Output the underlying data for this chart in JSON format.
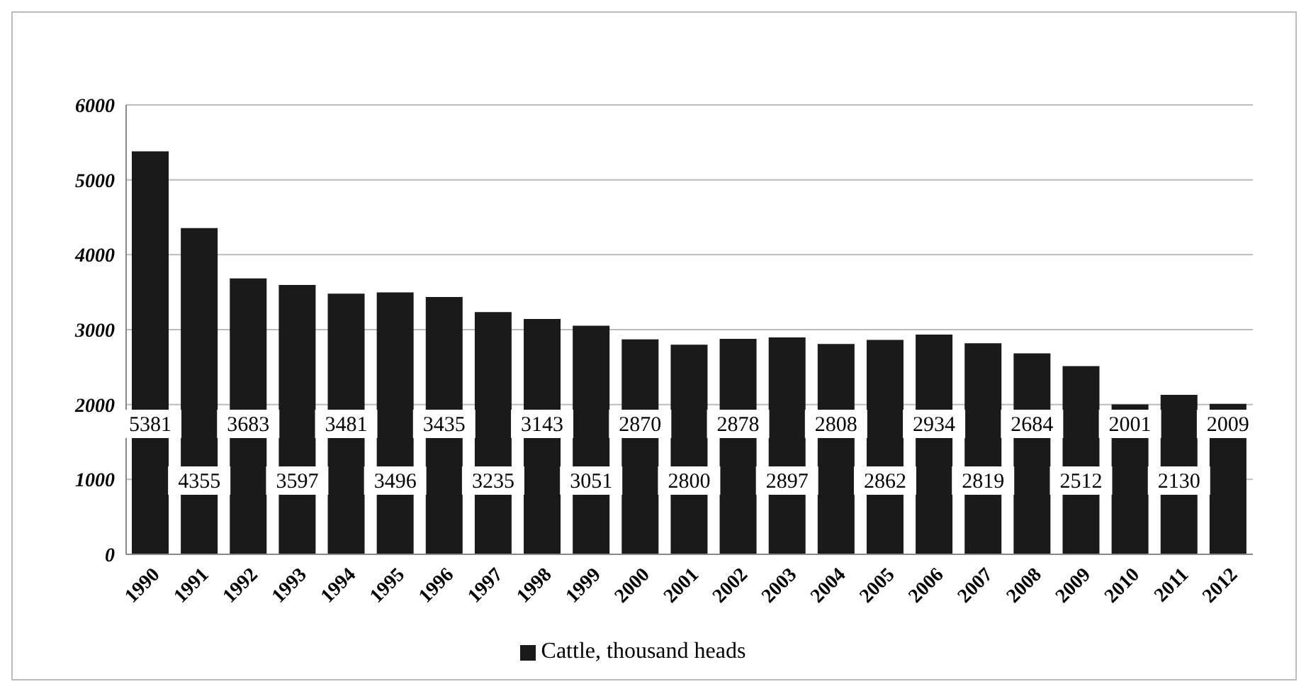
{
  "chart_data": {
    "type": "bar",
    "categories": [
      "1990",
      "1991",
      "1992",
      "1993",
      "1994",
      "1995",
      "1996",
      "1997",
      "1998",
      "1999",
      "2000",
      "2001",
      "2002",
      "2003",
      "2004",
      "2005",
      "2006",
      "2007",
      "2008",
      "2009",
      "2010",
      "2011",
      "2012"
    ],
    "series": [
      {
        "name": "Cattle, thousand heads",
        "color": "#1a1a1a",
        "values": [
          5381,
          4355,
          3683,
          3597,
          3481,
          3496,
          3435,
          3235,
          3143,
          3051,
          2870,
          2800,
          2878,
          2897,
          2808,
          2862,
          2934,
          2819,
          2684,
          2512,
          2001,
          2130,
          2009
        ]
      }
    ],
    "ylim": [
      0,
      6000
    ],
    "yticks": [
      0,
      1000,
      2000,
      3000,
      4000,
      5000,
      6000
    ],
    "grid": "y",
    "legend": "bottom",
    "data_labels": true
  }
}
